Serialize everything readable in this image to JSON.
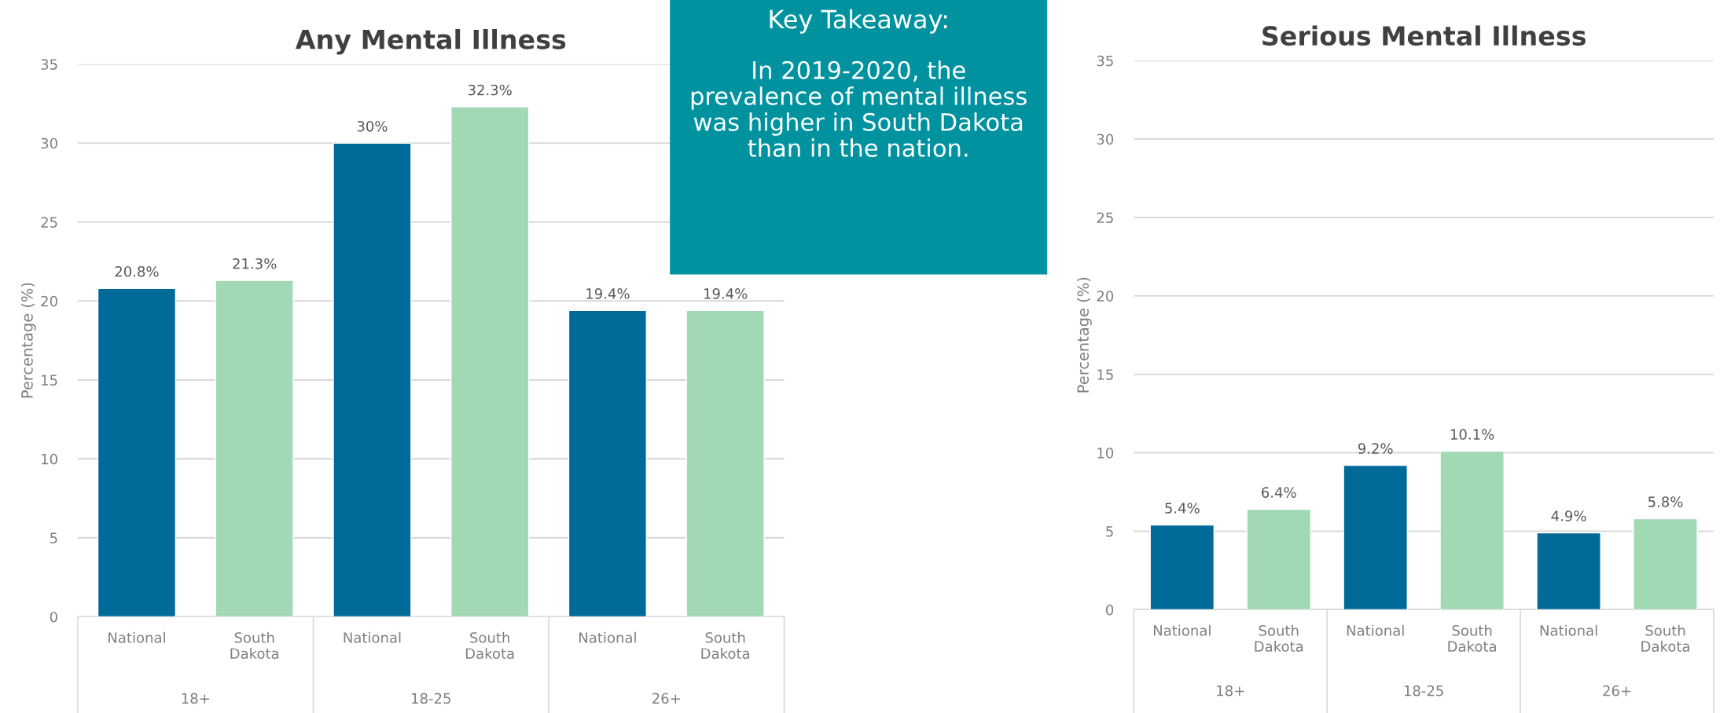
{
  "chart_data": [
    {
      "type": "bar",
      "title": "Any Mental Illness",
      "ylabel": "Percentage (%)",
      "categories": [
        "18+",
        "18-25",
        "26+"
      ],
      "series": [
        {
          "name": "National",
          "color": "#006a99",
          "values": [
            20.8,
            30,
            19.4
          ],
          "value_labels": [
            "20.8%",
            "30%",
            "19.4%"
          ]
        },
        {
          "name": "South Dakota",
          "color": "#a0d9b4",
          "values": [
            21.3,
            32.3,
            19.4
          ],
          "value_labels": [
            "21.3%",
            "32.3%",
            "19.4%"
          ]
        }
      ],
      "ylim": [
        0,
        35
      ],
      "yticks": [
        0,
        5,
        10,
        15,
        20,
        25,
        30,
        35
      ],
      "grid": "y",
      "legend": false,
      "annotations": [
        "Key Takeaway:",
        "In 2019-2020, the prevalence of mental illness was higher in South Dakota than in the nation."
      ]
    },
    {
      "type": "bar",
      "title": "Serious Mental Illness",
      "ylabel": "Percentage (%)",
      "categories": [
        "18+",
        "18-25",
        "26+"
      ],
      "series": [
        {
          "name": "National",
          "color": "#006a99",
          "values": [
            5.4,
            9.2,
            4.9
          ],
          "value_labels": [
            "5.4%",
            "9.2%",
            "4.9%"
          ]
        },
        {
          "name": "South Dakota",
          "color": "#a0d9b4",
          "values": [
            6.4,
            10.1,
            5.8
          ],
          "value_labels": [
            "6.4%",
            "10.1%",
            "5.8%"
          ]
        }
      ],
      "ylim": [
        0,
        35
      ],
      "yticks": [
        0,
        5,
        10,
        15,
        20,
        25,
        30,
        35
      ],
      "grid": "y",
      "legend": false
    }
  ]
}
